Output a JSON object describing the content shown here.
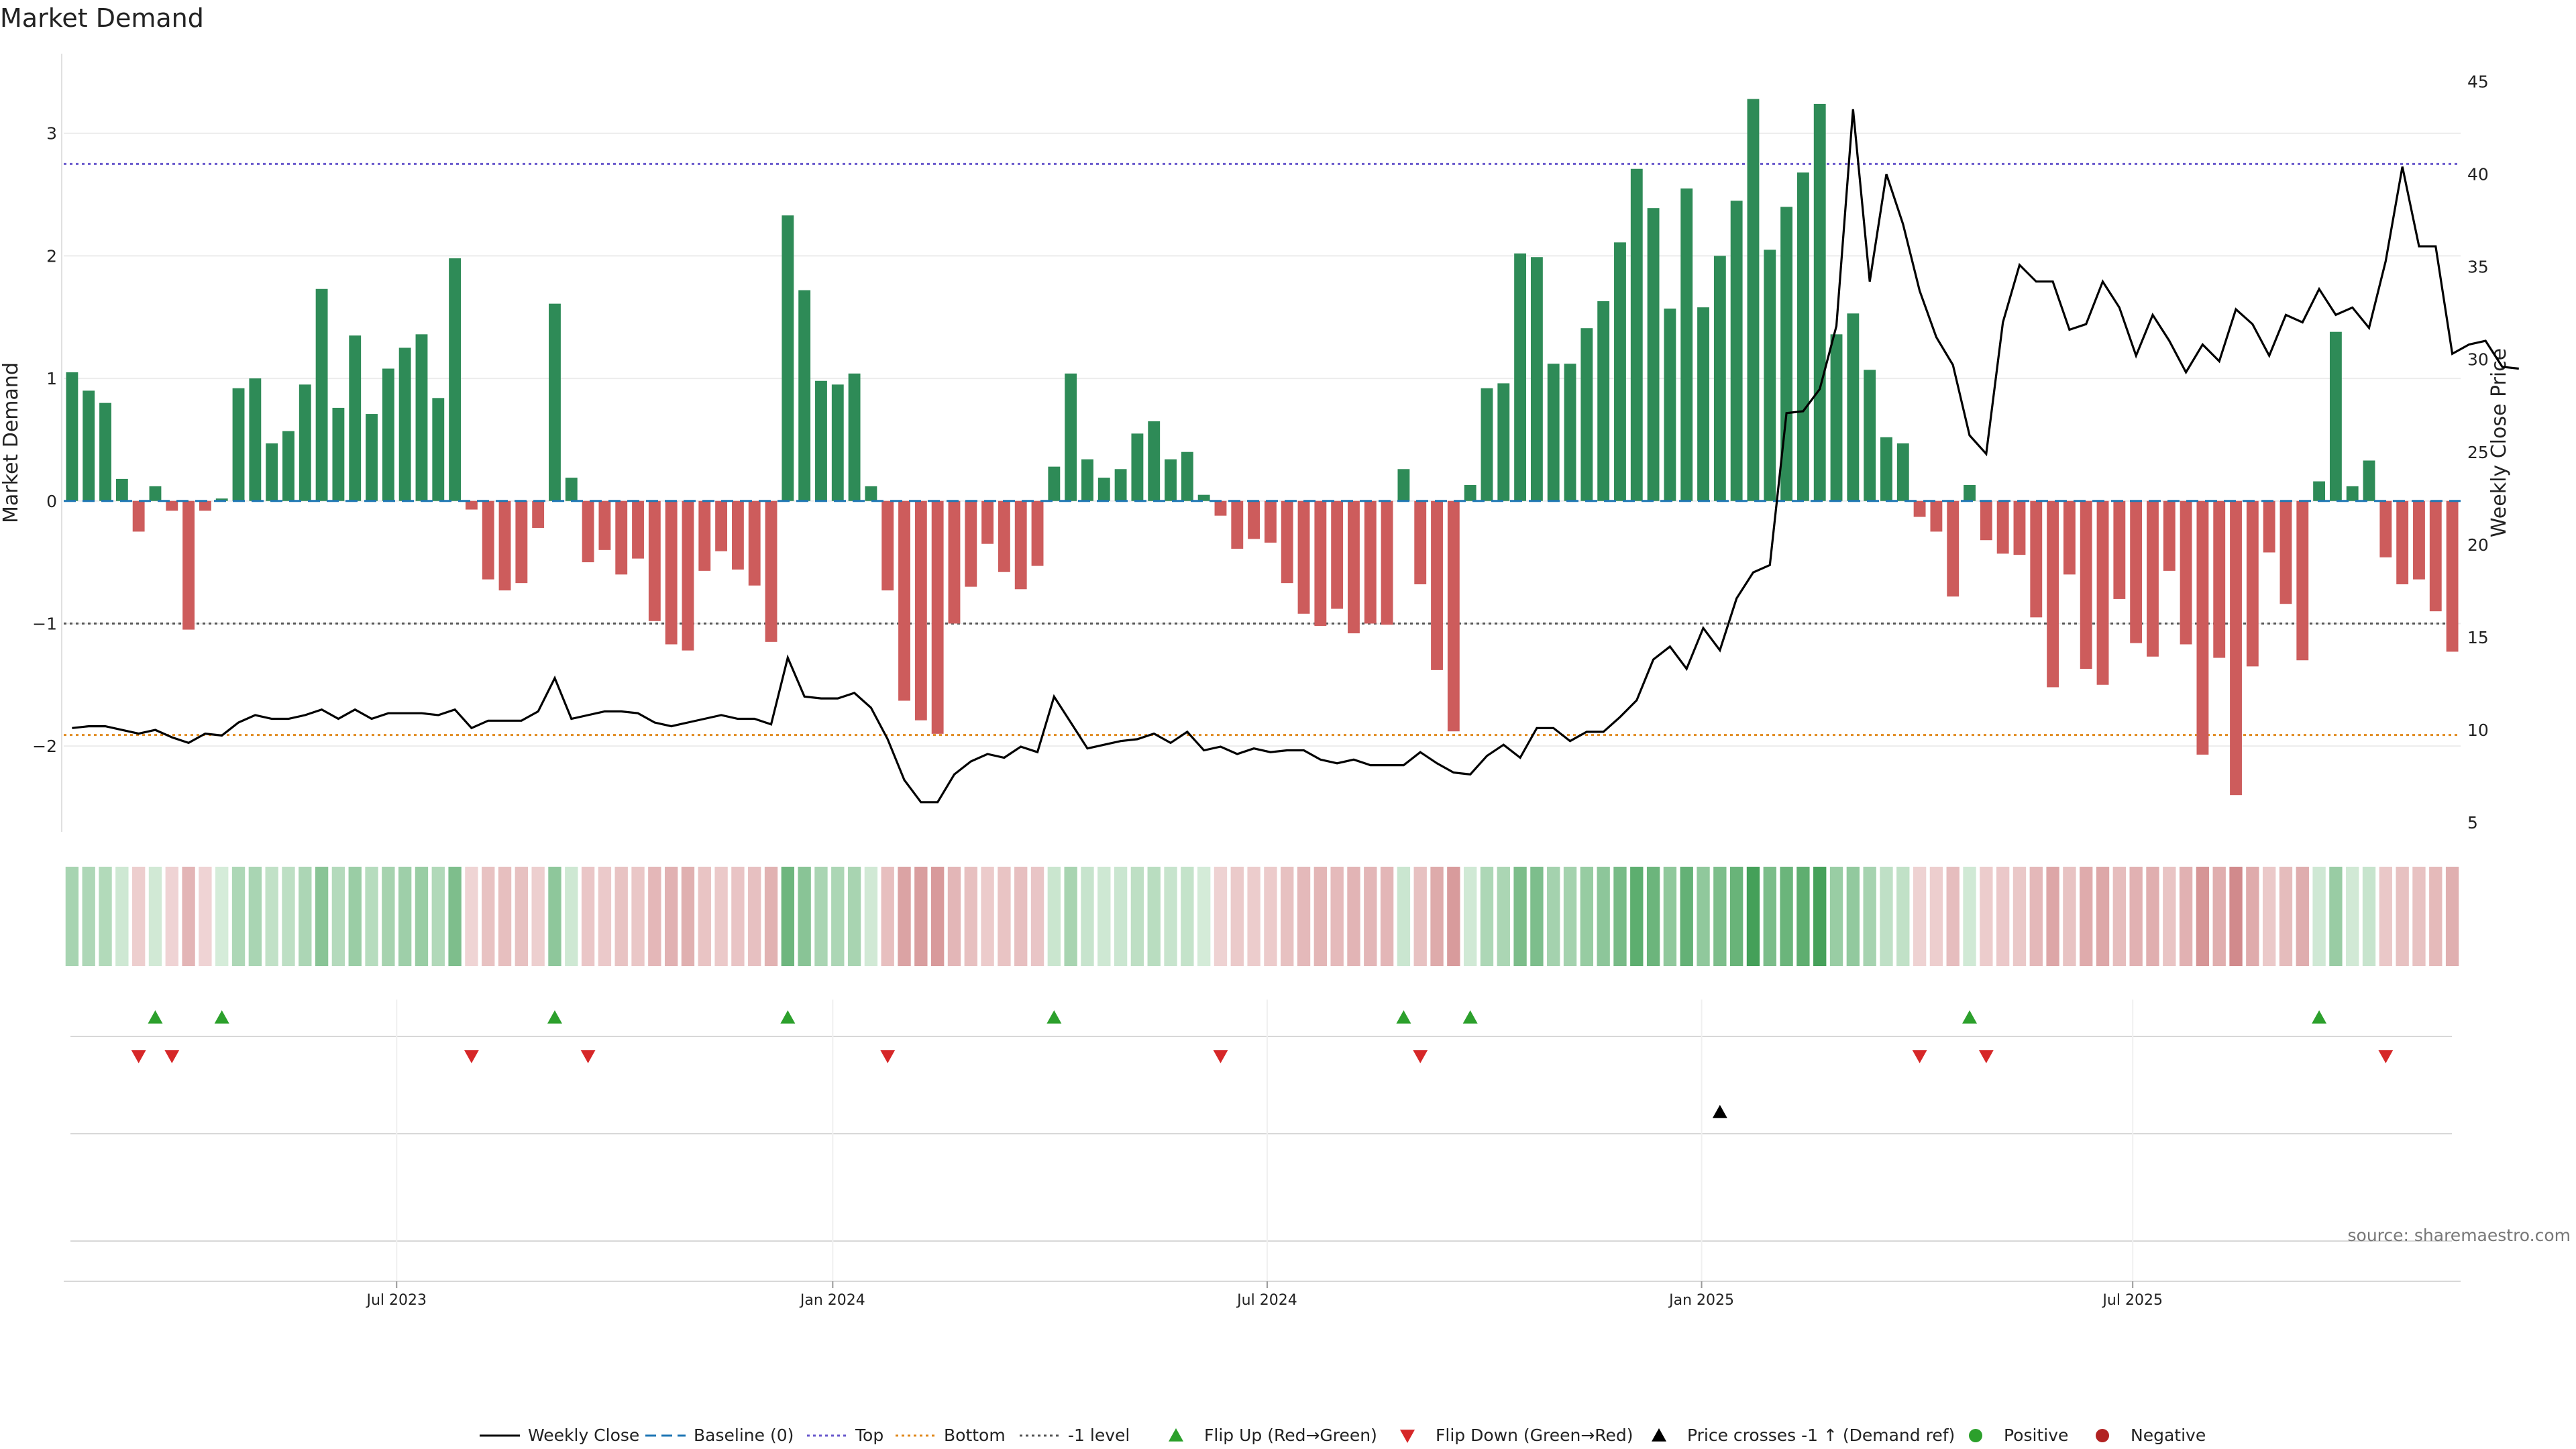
{
  "chart_data": {
    "type": "bar",
    "title": "Market Demand",
    "ylabel": "Market Demand",
    "y2label": "Weekly Close Price",
    "ylim": [
      -2.7,
      3.65
    ],
    "y2lim": [
      4.5,
      46.5
    ],
    "yticks": [
      -2,
      -1,
      0,
      1,
      2,
      3
    ],
    "ytick_labels": [
      "−2",
      "−1",
      "0",
      "1",
      "2",
      "3"
    ],
    "y2ticks": [
      5,
      10,
      15,
      20,
      25,
      30,
      35,
      40,
      45
    ],
    "ytick2_labels": [
      "5",
      "10",
      "15",
      "20",
      "25",
      "30",
      "35",
      "40",
      "45"
    ],
    "date_ticks": [
      {
        "week": 20,
        "label": "Jul 2023"
      },
      {
        "week": 46.2,
        "label": "Jan 2024"
      },
      {
        "week": 72.3,
        "label": "Jul 2024"
      },
      {
        "week": 98.4,
        "label": "Jan 2025"
      },
      {
        "week": 124.3,
        "label": "Jul 2025"
      }
    ],
    "reference_lines": {
      "top": 2.75,
      "bottom": -1.91,
      "minus_one": -1,
      "baseline": 0
    },
    "bars": [
      1.05,
      0.9,
      0.8,
      0.18,
      -0.25,
      0.12,
      -0.08,
      -1.05,
      -0.08,
      0.02,
      0.92,
      1.0,
      0.47,
      0.57,
      0.95,
      1.73,
      0.76,
      1.35,
      0.71,
      1.08,
      1.25,
      1.36,
      0.84,
      1.98,
      -0.07,
      -0.64,
      -0.73,
      -0.67,
      -0.22,
      1.61,
      0.19,
      -0.5,
      -0.4,
      -0.6,
      -0.47,
      -0.98,
      -1.17,
      -1.22,
      -0.57,
      -0.41,
      -0.56,
      -0.69,
      -1.15,
      2.33,
      1.72,
      0.98,
      0.95,
      1.04,
      0.12,
      -0.73,
      -1.63,
      -1.79,
      -1.9,
      -1.0,
      -0.7,
      -0.35,
      -0.58,
      -0.72,
      -0.53,
      0.28,
      1.04,
      0.34,
      0.19,
      0.26,
      0.55,
      0.65,
      0.34,
      0.4,
      0.05,
      -0.12,
      -0.39,
      -0.31,
      -0.34,
      -0.67,
      -0.92,
      -1.02,
      -0.88,
      -1.08,
      -1.0,
      -1.01,
      0.26,
      -0.68,
      -1.38,
      -1.88,
      0.13,
      0.92,
      0.96,
      2.02,
      1.99,
      1.12,
      1.12,
      1.41,
      1.63,
      2.11,
      2.71,
      2.39,
      1.57,
      2.55,
      1.58,
      2.0,
      2.45,
      3.28,
      2.05,
      2.4,
      2.68,
      3.24,
      1.36,
      1.53,
      1.07,
      0.52,
      0.47,
      -0.13,
      -0.25,
      -0.78,
      0.13,
      -0.32,
      -0.43,
      -0.44,
      -0.95,
      -1.52,
      -0.6,
      -1.37,
      -1.5,
      -0.8,
      -1.16,
      -1.27,
      -0.57,
      -1.17,
      -2.07,
      -1.28,
      -2.4,
      -1.35,
      -0.42,
      -0.84,
      -1.3,
      0.16,
      1.38,
      0.12,
      0.33,
      -0.46,
      -0.68,
      -0.64,
      -0.9,
      -1.23
    ],
    "price": [
      10.1,
      10.2,
      10.2,
      10.0,
      9.8,
      10.0,
      9.6,
      9.3,
      9.8,
      9.7,
      10.4,
      10.8,
      10.6,
      10.6,
      10.8,
      11.1,
      10.6,
      11.1,
      10.6,
      10.9,
      10.9,
      10.9,
      10.8,
      11.1,
      10.1,
      10.5,
      10.5,
      10.5,
      11.0,
      12.8,
      10.6,
      10.8,
      11.0,
      11.0,
      10.9,
      10.4,
      10.2,
      10.4,
      10.6,
      10.8,
      10.6,
      10.6,
      10.3,
      13.9,
      11.8,
      11.7,
      11.7,
      12.0,
      11.2,
      9.5,
      7.3,
      6.1,
      6.1,
      7.6,
      8.3,
      8.7,
      8.5,
      9.1,
      8.8,
      11.8,
      10.4,
      9.0,
      9.2,
      9.4,
      9.5,
      9.8,
      9.3,
      9.9,
      8.9,
      9.1,
      8.7,
      9.0,
      8.8,
      8.9,
      8.9,
      8.4,
      8.2,
      8.4,
      8.1,
      8.1,
      8.1,
      8.8,
      8.2,
      7.7,
      7.6,
      8.6,
      9.2,
      8.5,
      10.1,
      10.1,
      9.4,
      9.9,
      9.9,
      10.7,
      11.6,
      13.8,
      14.5,
      13.3,
      15.5,
      14.3,
      17.1,
      18.5,
      18.9,
      27.1,
      27.2,
      28.4,
      31.8,
      43.5,
      34.2,
      40.0,
      37.3,
      33.7,
      31.2,
      29.7,
      25.9,
      24.9,
      32.0,
      35.1,
      34.2,
      34.2,
      31.6,
      31.9,
      34.2,
      32.8,
      30.2,
      32.4,
      31.0,
      29.3,
      30.8,
      29.9,
      32.7,
      31.9,
      30.2,
      32.4,
      32.0,
      33.8,
      32.4,
      32.8,
      31.7,
      35.3,
      40.4,
      36.1,
      36.1,
      30.3,
      30.8,
      31.0,
      29.6,
      29.5
    ],
    "markers": {
      "flip_up_weeks": [
        5,
        9,
        29,
        43,
        59,
        80,
        84,
        114,
        135
      ],
      "flip_down_weeks": [
        4,
        6,
        24,
        31,
        49,
        69,
        81,
        111,
        115,
        139
      ],
      "price_cross_weeks": [
        99
      ]
    },
    "legend": [
      {
        "label": "Weekly Close",
        "kind": "line",
        "color": "#000000"
      },
      {
        "label": "Baseline (0)",
        "kind": "dashed",
        "color": "#1f77b4"
      },
      {
        "label": "Top",
        "kind": "dotted",
        "color": "#6a5acd"
      },
      {
        "label": "Bottom",
        "kind": "dotted",
        "color": "#e08a1e"
      },
      {
        "label": "-1 level",
        "kind": "dotted",
        "color": "#555555"
      },
      {
        "label": "Flip Up (Red→Green)",
        "kind": "triangle-up",
        "color": "#2ca02c"
      },
      {
        "label": "Flip Down (Green→Red)",
        "kind": "triangle-down",
        "color": "#d62728"
      },
      {
        "label": "Price crosses -1 ↑ (Demand ref)",
        "kind": "triangle-up",
        "color": "#000000"
      },
      {
        "label": "Positive",
        "kind": "circle",
        "color": "#2ca02c"
      },
      {
        "label": "Negative",
        "kind": "circle",
        "color": "#b22222"
      }
    ],
    "source": "source: sharemaestro.com"
  },
  "colors": {
    "positive_bar": "#2e8b57",
    "negative_bar": "#cd5c5c",
    "price_line": "#000000",
    "top_line": "#6a5acd",
    "bottom_line": "#e08a1e",
    "minus_one_line": "#555555",
    "baseline": "#1f77b4"
  }
}
